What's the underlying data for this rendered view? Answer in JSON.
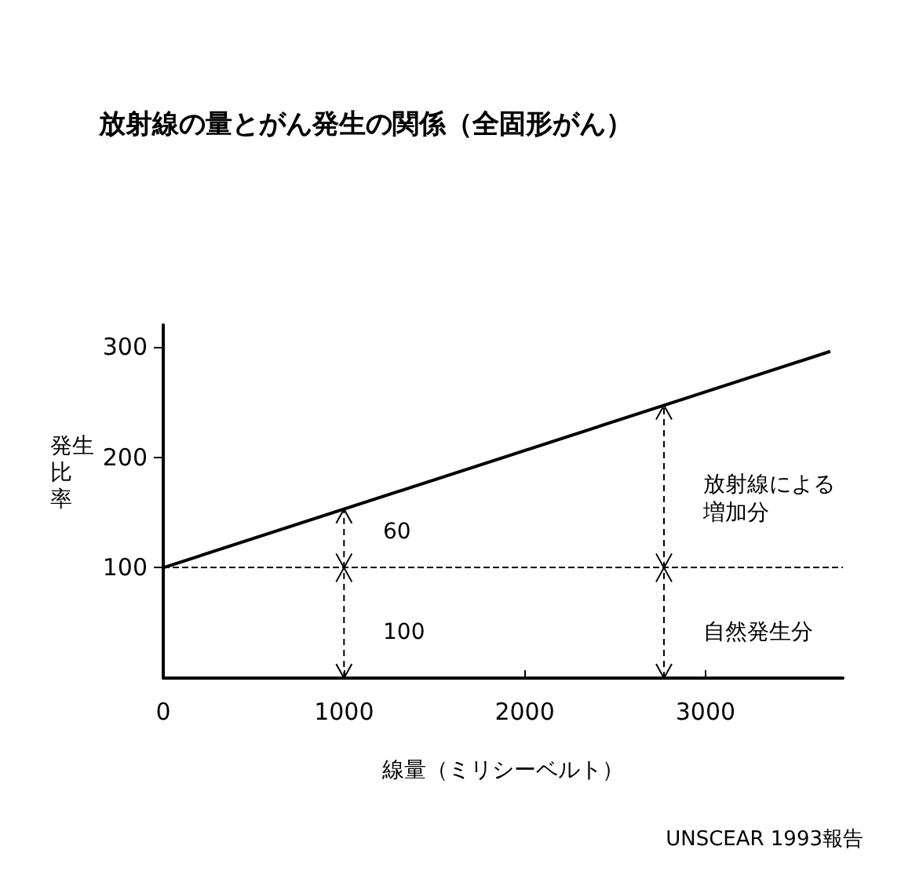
{
  "chart_data": {
    "type": "line",
    "title": "放射線の量とがん発生の関係（全固形がん）",
    "xlabel": "線量（ミリシーベルト）",
    "ylabel": "発生比率",
    "x": [
      0,
      3690
    ],
    "series": [
      {
        "color": "#000000",
        "values": [
          100,
          296
        ]
      }
    ],
    "xlim": [
      0,
      3760
    ],
    "xticks": [
      0,
      1000,
      2000,
      3000
    ],
    "ylim": [
      0,
      320
    ],
    "yticks": [
      100,
      200,
      300
    ],
    "grid": false,
    "marker": "none",
    "line_style": "solid",
    "ref_lines": [
      {
        "axis": "y",
        "value": 100,
        "line_style": "dashed",
        "color": "#000000"
      },
      {
        "axis": "x",
        "value": 1000,
        "line_style": "dashed",
        "color": "#000000"
      },
      {
        "axis": "x",
        "value": 2770,
        "line_style": "dashed",
        "color": "#000000"
      }
    ],
    "annotations": [
      "60",
      "100",
      "放射線による増加分",
      "自然発生分",
      "UNSCEAR 1993報告"
    ]
  }
}
